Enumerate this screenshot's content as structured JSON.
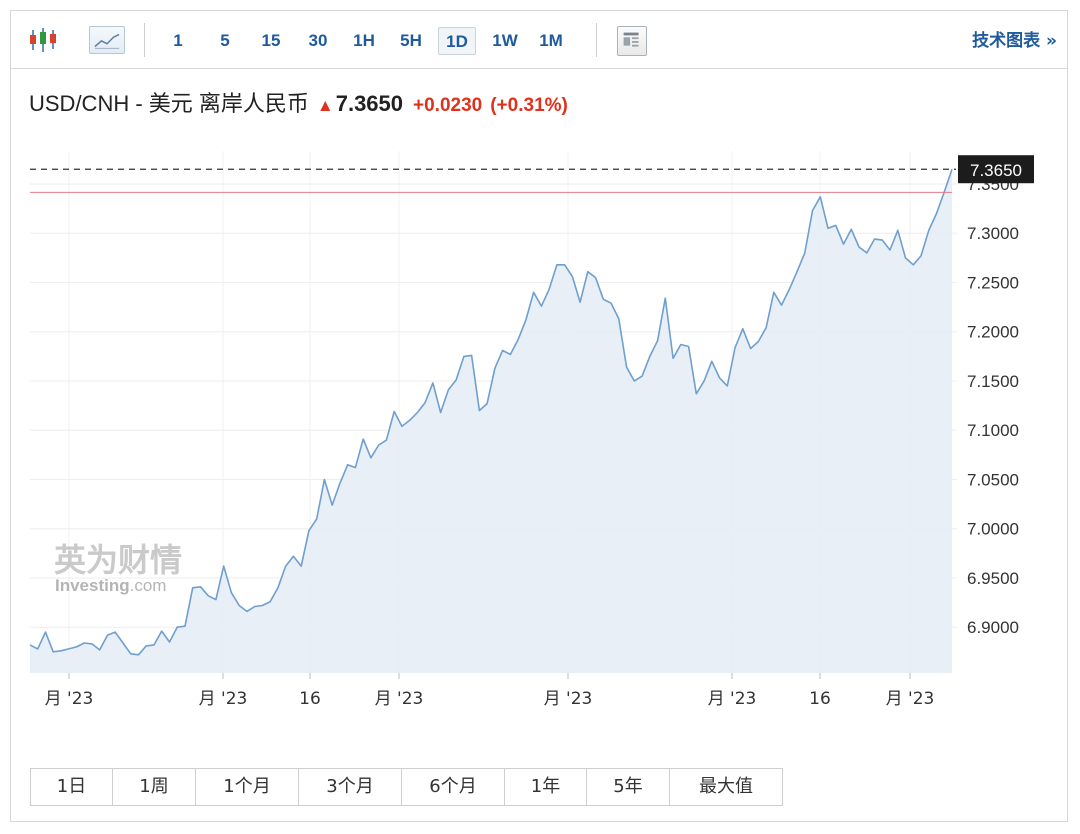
{
  "toolbar": {
    "periods": [
      "1",
      "5",
      "15",
      "30",
      "1H",
      "5H",
      "1D",
      "1W",
      "1M"
    ],
    "active_period": "1D",
    "tech_link": "技术图表 »"
  },
  "header": {
    "symbol": "USD/CNH - 美元 离岸人民币",
    "price": "7.3650",
    "change": "+0.0230",
    "change_pct": "(+0.31%)",
    "up_color": "#e0301e"
  },
  "watermark": {
    "cn": "英为财情",
    "en_main": "Investing",
    "en_suffix": ".com"
  },
  "range_buttons": [
    "1日",
    "1周",
    "1个月",
    "3个月",
    "6个月",
    "1年",
    "5年",
    "最大值"
  ],
  "colors": {
    "line": "#6f9fcf",
    "fill": "#e6edf6",
    "ref_line": "#e57a8a",
    "price_tag_bg": "#1c1c1c",
    "link": "#1f5b9c"
  },
  "chart_data": {
    "type": "area",
    "ylim": [
      6.8535,
      7.3835
    ],
    "yticks": [
      6.9,
      6.95,
      7.0,
      7.05,
      7.1,
      7.15,
      7.2,
      7.25,
      7.3,
      7.35
    ],
    "ytick_labels": [
      "6.9000",
      "6.9500",
      "7.0000",
      "7.0500",
      "7.1000",
      "7.1500",
      "7.2000",
      "7.2500",
      "7.3000",
      "7.3500"
    ],
    "last_price": 7.365,
    "last_price_label": "7.3650",
    "reference_line": 7.3415,
    "xtick_labels": [
      "月 '23",
      "月 '23",
      "16",
      "月 '23",
      "月 '23",
      "月 '23",
      "16",
      "月 '23"
    ],
    "values": [
      6.882,
      6.878,
      6.895,
      6.875,
      6.876,
      6.878,
      6.88,
      6.884,
      6.883,
      6.877,
      6.892,
      6.895,
      6.884,
      6.873,
      6.872,
      6.881,
      6.882,
      6.896,
      6.885,
      6.9,
      6.901,
      6.94,
      6.941,
      6.932,
      6.928,
      6.962,
      6.935,
      6.922,
      6.916,
      6.921,
      6.922,
      6.926,
      6.94,
      6.962,
      6.972,
      6.962,
      6.998,
      7.01,
      7.05,
      7.024,
      7.046,
      7.065,
      7.062,
      7.091,
      7.072,
      7.085,
      7.09,
      7.119,
      7.104,
      7.11,
      7.118,
      7.128,
      7.148,
      7.118,
      7.141,
      7.151,
      7.175,
      7.176,
      7.12,
      7.127,
      7.163,
      7.181,
      7.177,
      7.192,
      7.212,
      7.24,
      7.226,
      7.243,
      7.268,
      7.268,
      7.256,
      7.23,
      7.261,
      7.255,
      7.233,
      7.229,
      7.213,
      7.164,
      7.15,
      7.155,
      7.175,
      7.191,
      7.234,
      7.173,
      7.187,
      7.185,
      7.137,
      7.15,
      7.17,
      7.153,
      7.145,
      7.184,
      7.203,
      7.183,
      7.19,
      7.204,
      7.24,
      7.227,
      7.243,
      7.261,
      7.28,
      7.323,
      7.337,
      7.305,
      7.308,
      7.289,
      7.304,
      7.286,
      7.28,
      7.294,
      7.293,
      7.283,
      7.303,
      7.275,
      7.268,
      7.277,
      7.303,
      7.32,
      7.342,
      7.365
    ]
  }
}
